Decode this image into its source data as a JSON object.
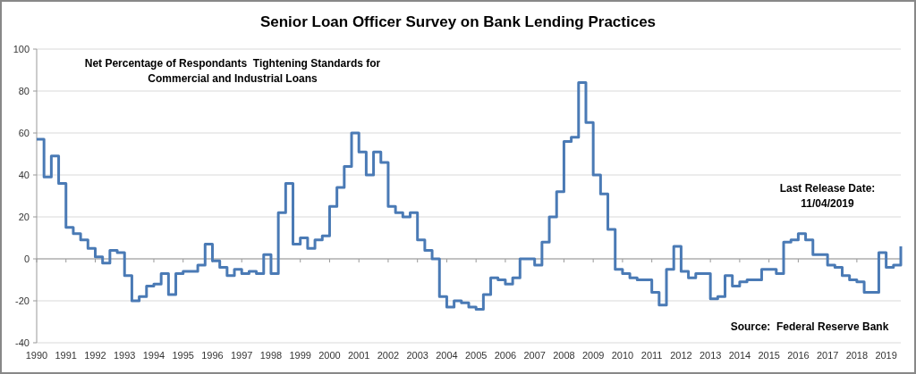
{
  "chart_data": {
    "type": "step",
    "title": "Senior Loan Officer Survey on Bank Lending Practices",
    "x": [
      1990,
      1990.25,
      1990.5,
      1990.75,
      1991,
      1991.25,
      1991.5,
      1991.75,
      1992,
      1992.25,
      1992.5,
      1992.75,
      1993,
      1993.25,
      1993.5,
      1993.75,
      1994,
      1994.25,
      1994.5,
      1994.75,
      1995,
      1995.25,
      1995.5,
      1995.75,
      1996,
      1996.25,
      1996.5,
      1996.75,
      1997,
      1997.25,
      1997.5,
      1997.75,
      1998,
      1998.25,
      1998.5,
      1998.75,
      1999,
      1999.25,
      1999.5,
      1999.75,
      2000,
      2000.25,
      2000.5,
      2000.75,
      2001,
      2001.25,
      2001.5,
      2001.75,
      2002,
      2002.25,
      2002.5,
      2002.75,
      2003,
      2003.25,
      2003.5,
      2003.75,
      2004,
      2004.25,
      2004.5,
      2004.75,
      2005,
      2005.25,
      2005.5,
      2005.75,
      2006,
      2006.25,
      2006.5,
      2006.75,
      2007,
      2007.25,
      2007.5,
      2007.75,
      2008,
      2008.25,
      2008.5,
      2008.75,
      2009,
      2009.25,
      2009.5,
      2009.75,
      2010,
      2010.25,
      2010.5,
      2010.75,
      2011,
      2011.25,
      2011.5,
      2011.75,
      2012,
      2012.25,
      2012.5,
      2012.75,
      2013,
      2013.25,
      2013.5,
      2013.75,
      2014,
      2014.25,
      2014.5,
      2014.75,
      2015,
      2015.25,
      2015.5,
      2015.75,
      2016,
      2016.25,
      2016.5,
      2016.75,
      2017,
      2017.25,
      2017.5,
      2017.75,
      2018,
      2018.25,
      2018.5,
      2018.75,
      2019,
      2019.25,
      2019.5
    ],
    "series": [
      {
        "color": "#4a7ab5",
        "values": [
          57,
          39,
          49,
          36,
          15,
          12,
          9,
          5,
          1,
          -2,
          4,
          3,
          -8,
          -20,
          -18,
          -13,
          -12,
          -7,
          -17,
          -7,
          -6,
          -6,
          -3,
          7,
          -1,
          -4,
          -8,
          -5,
          -7,
          -6,
          -7,
          2,
          -7,
          22,
          36,
          7,
          10,
          5,
          9,
          11,
          25,
          34,
          44,
          60,
          51,
          40,
          51,
          46,
          25,
          22,
          20,
          22,
          9,
          4,
          0,
          -18,
          -23,
          -20,
          -21,
          -23,
          -24,
          -17,
          -9,
          -10,
          -12,
          -9,
          0,
          0,
          -3,
          8,
          20,
          32,
          56,
          58,
          84,
          65,
          40,
          31,
          14,
          -5,
          -7,
          -9,
          -10,
          -10,
          -16,
          -22,
          -5,
          6,
          -6,
          -9,
          -7,
          -7,
          -19,
          -18,
          -8,
          -13,
          -11,
          -10,
          -10,
          -5,
          -5,
          -7,
          8,
          9,
          12,
          9,
          2,
          2,
          -3,
          -4,
          -8,
          -10,
          -11,
          -16,
          -16,
          3,
          -4,
          -3,
          6
        ]
      }
    ],
    "xlim": [
      1990,
      2019.5
    ],
    "xticks": [
      1990,
      1991,
      1992,
      1993,
      1994,
      1995,
      1996,
      1997,
      1998,
      1999,
      2000,
      2001,
      2002,
      2003,
      2004,
      2005,
      2006,
      2007,
      2008,
      2009,
      2010,
      2011,
      2012,
      2013,
      2014,
      2015,
      2016,
      2017,
      2018,
      2019
    ],
    "ylim": [
      -40,
      100
    ],
    "yticks": [
      -40,
      -20,
      0,
      20,
      40,
      60,
      80,
      100
    ],
    "grid": "y",
    "annotations": [
      "Net Percentage of Respondants  Tightening Standards for\nCommercial and Industrial Loans",
      "Last Release Date:\n11/04/2019",
      "Source:  Federal Reserve Bank"
    ]
  }
}
